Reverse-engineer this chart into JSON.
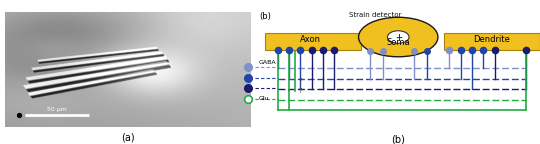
{
  "title_a": "(a)",
  "title_b": "(b)",
  "strain_detector_label": "Strain detector",
  "axon_label": "Axon",
  "soma_label": "Soma",
  "dendrite_label": "Dendrite",
  "gaba_label": "GABA",
  "glu_label": "Glu",
  "scale_bar_label": "50 μm",
  "yellow_color": "#F0C020",
  "blue_light": "#8090C8",
  "blue_mid": "#2244AA",
  "blue_dark": "#1a1a6e",
  "green_color": "#22AA44",
  "img_bg_light": 0.78,
  "img_bg_dark": 0.35
}
